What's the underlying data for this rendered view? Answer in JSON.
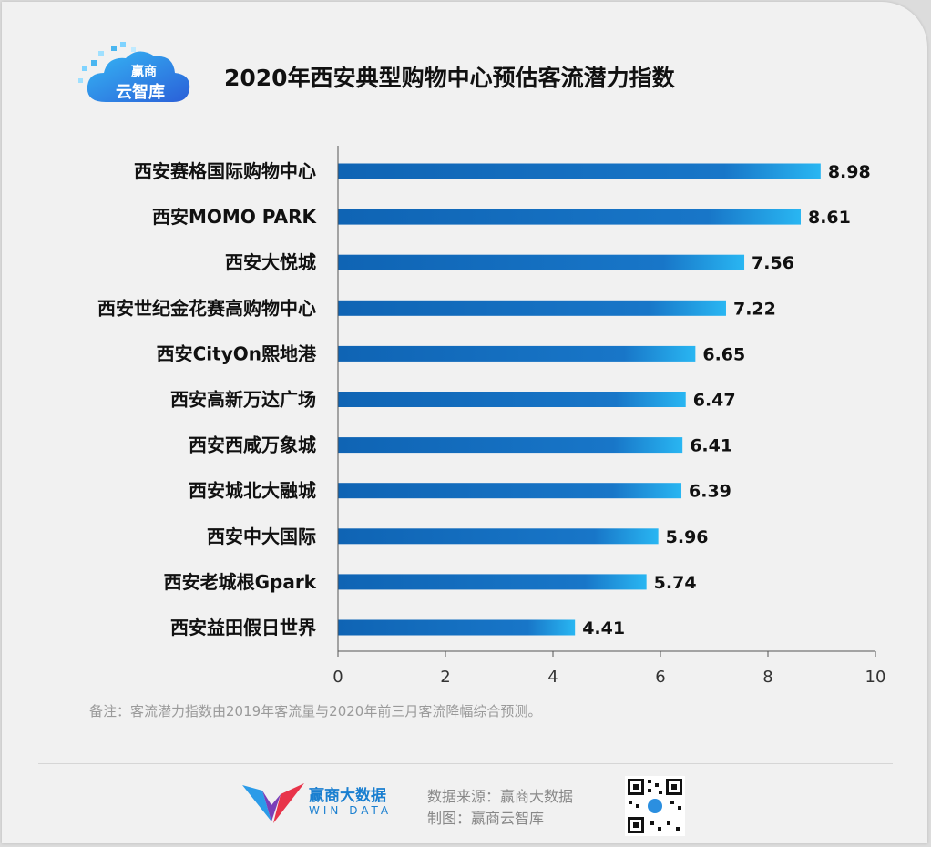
{
  "brand": {
    "logo_line1": "赢商",
    "logo_line2": "云智库",
    "name_cn": "赢商大数据",
    "name_en": "WIN DATA"
  },
  "title": "2020年西安典型购物中心预估客流潜力指数",
  "note": "备注：客流潜力指数由2019年客流量与2020年前三月客流降幅综合预测。",
  "footer": {
    "source": "数据来源：赢商大数据",
    "maker": "制图：赢商云智库"
  },
  "colors": {
    "bar_dark": "#0f64b4",
    "bar_light": "#27b2f0",
    "accent": "#1a7fd0"
  },
  "chart_data": {
    "type": "bar",
    "orientation": "horizontal",
    "title": "2020年西安典型购物中心预估客流潜力指数",
    "categories": [
      "西安赛格国际购物中心",
      "西安MOMO PARK",
      "西安大悦城",
      "西安世纪金花赛高购物中心",
      "西安CityOn熙地港",
      "西安高新万达广场",
      "西安西咸万象城",
      "西安城北大融城",
      "西安中大国际",
      "西安老城根Gpark",
      "西安益田假日世界"
    ],
    "values": [
      8.98,
      8.61,
      7.56,
      7.22,
      6.65,
      6.47,
      6.41,
      6.39,
      5.96,
      5.74,
      4.41
    ],
    "value_labels": [
      "8.98",
      "8.61",
      "7.56",
      "7.22",
      "6.65",
      "6.47",
      "6.41",
      "6.39",
      "5.96",
      "5.74",
      "4.41"
    ],
    "xlim": [
      0,
      10
    ],
    "xticks": [
      0,
      2,
      4,
      6,
      8,
      10
    ],
    "xtick_labels": [
      "0",
      "2",
      "4",
      "6",
      "8",
      "10"
    ],
    "xlabel": "",
    "ylabel": "",
    "grid": false
  }
}
